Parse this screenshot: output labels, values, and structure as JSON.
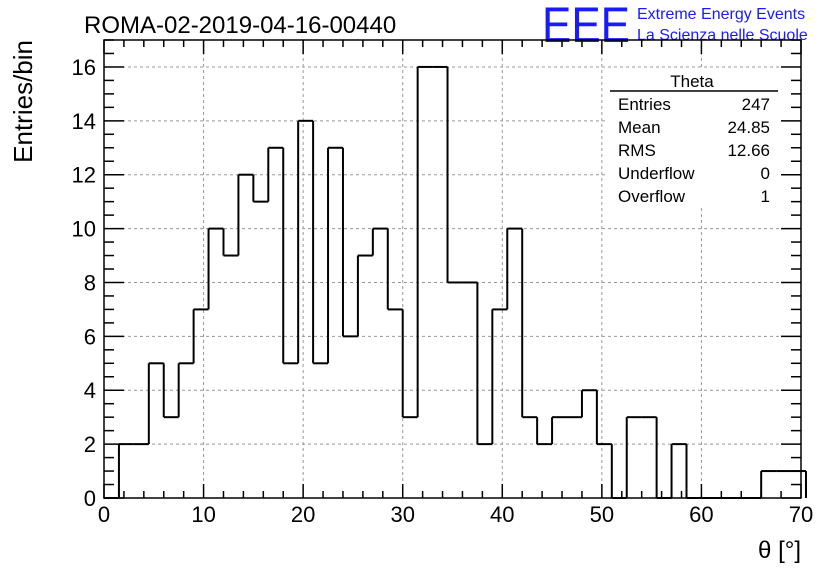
{
  "chart_data": {
    "type": "histogram",
    "title": "ROMA-02-2019-04-16-00440",
    "xlabel": "θ [°]",
    "ylabel": "Entries/bin",
    "xlim": [
      0,
      70
    ],
    "ylim": [
      0,
      17
    ],
    "grid": true,
    "x_ticks": [
      0,
      10,
      20,
      30,
      40,
      50,
      60,
      70
    ],
    "y_ticks": [
      0,
      2,
      4,
      6,
      8,
      10,
      12,
      14,
      16
    ],
    "bin_width": 1.5,
    "bin_start": 0,
    "values": [
      0,
      2,
      2,
      5,
      3,
      5,
      7,
      10,
      9,
      12,
      11,
      13,
      5,
      14,
      5,
      13,
      6,
      9,
      10,
      7,
      3,
      16,
      16,
      8,
      8,
      2,
      7,
      10,
      3,
      2,
      3,
      3,
      4,
      2,
      0,
      3,
      3,
      0,
      2,
      0,
      0,
      0,
      0,
      0,
      1,
      1,
      1
    ],
    "stats_box": {
      "title": "Theta",
      "rows": [
        {
          "label": "Entries",
          "value": "247"
        },
        {
          "label": "Mean",
          "value": "24.85"
        },
        {
          "label": "RMS",
          "value": "12.66"
        },
        {
          "label": "Underflow",
          "value": "0"
        },
        {
          "label": "Overflow",
          "value": "1"
        }
      ]
    },
    "logo": {
      "mark": "EEE",
      "line1": "Extreme Energy Events",
      "line2": "La Scienza nelle Scuole",
      "color": "#1a1aff"
    }
  }
}
